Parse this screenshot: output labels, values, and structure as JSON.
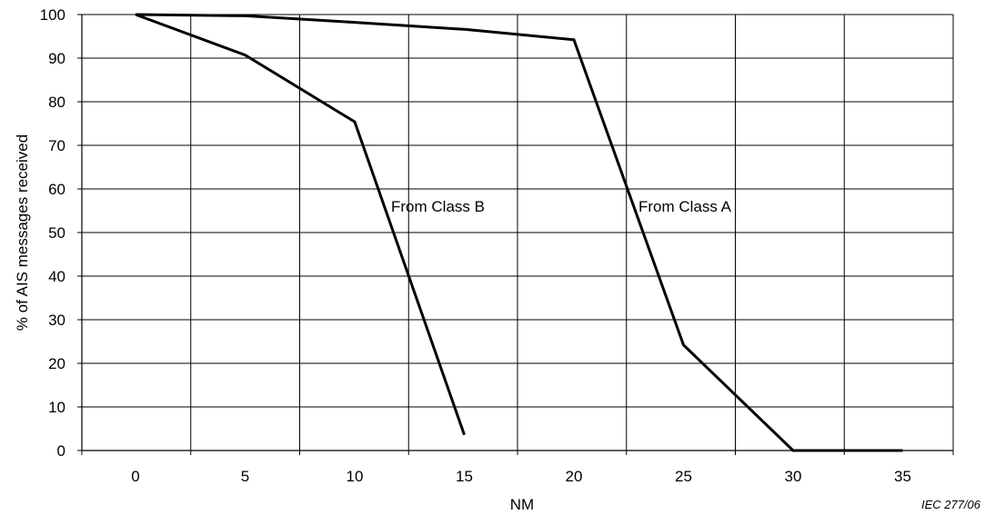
{
  "chart_data": {
    "type": "line",
    "xlabel": "NM",
    "ylabel": "% of AIS messages received",
    "x_ticks": [
      "0",
      "5",
      "10",
      "15",
      "20",
      "25",
      "30",
      "35"
    ],
    "y_ticks": [
      "0",
      "10",
      "20",
      "30",
      "40",
      "50",
      "60",
      "70",
      "80",
      "90",
      "100"
    ],
    "grid": true,
    "series": [
      {
        "name": "From Class A",
        "points": [
          [
            0,
            100
          ],
          [
            5,
            99.7
          ],
          [
            10,
            98.2
          ],
          [
            15,
            96.6
          ],
          [
            20,
            94.2
          ],
          [
            25,
            24.2
          ],
          [
            30,
            0
          ],
          [
            35,
            0
          ]
        ]
      },
      {
        "name": "From Class B",
        "points": [
          [
            0,
            100
          ],
          [
            5,
            90.7
          ],
          [
            10,
            75.4
          ],
          [
            15,
            3.6
          ]
        ]
      }
    ],
    "annotations": [
      {
        "text": "From Class B",
        "series": "From Class B"
      },
      {
        "text": "From Class A",
        "series": "From Class A"
      }
    ],
    "credit": "IEC   277/06"
  }
}
